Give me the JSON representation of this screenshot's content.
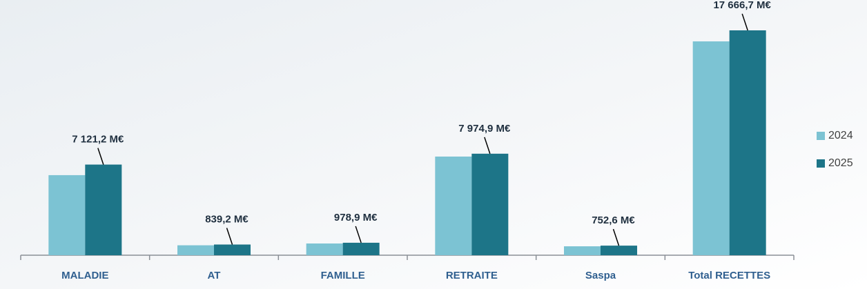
{
  "chart_data": {
    "type": "bar",
    "categories": [
      "MALADIE",
      "AT",
      "FAMILLE",
      "RETRAITE",
      "Saspa",
      "Total RECETTES"
    ],
    "series": [
      {
        "name": "2024",
        "color": "#7cc3d3",
        "values": [
          6290,
          780,
          920,
          7750,
          700,
          16800
        ]
      },
      {
        "name": "2025",
        "color": "#1d7588",
        "values": [
          7121.2,
          839.2,
          978.9,
          7974.9,
          752.6,
          17666.7
        ],
        "value_labels": [
          "7 121,2 M€",
          "839,2 M€",
          "978,9 M€",
          "7 974,9 M€",
          "752,6 M€",
          "17 666,7 M€"
        ]
      }
    ],
    "legend": "right"
  }
}
